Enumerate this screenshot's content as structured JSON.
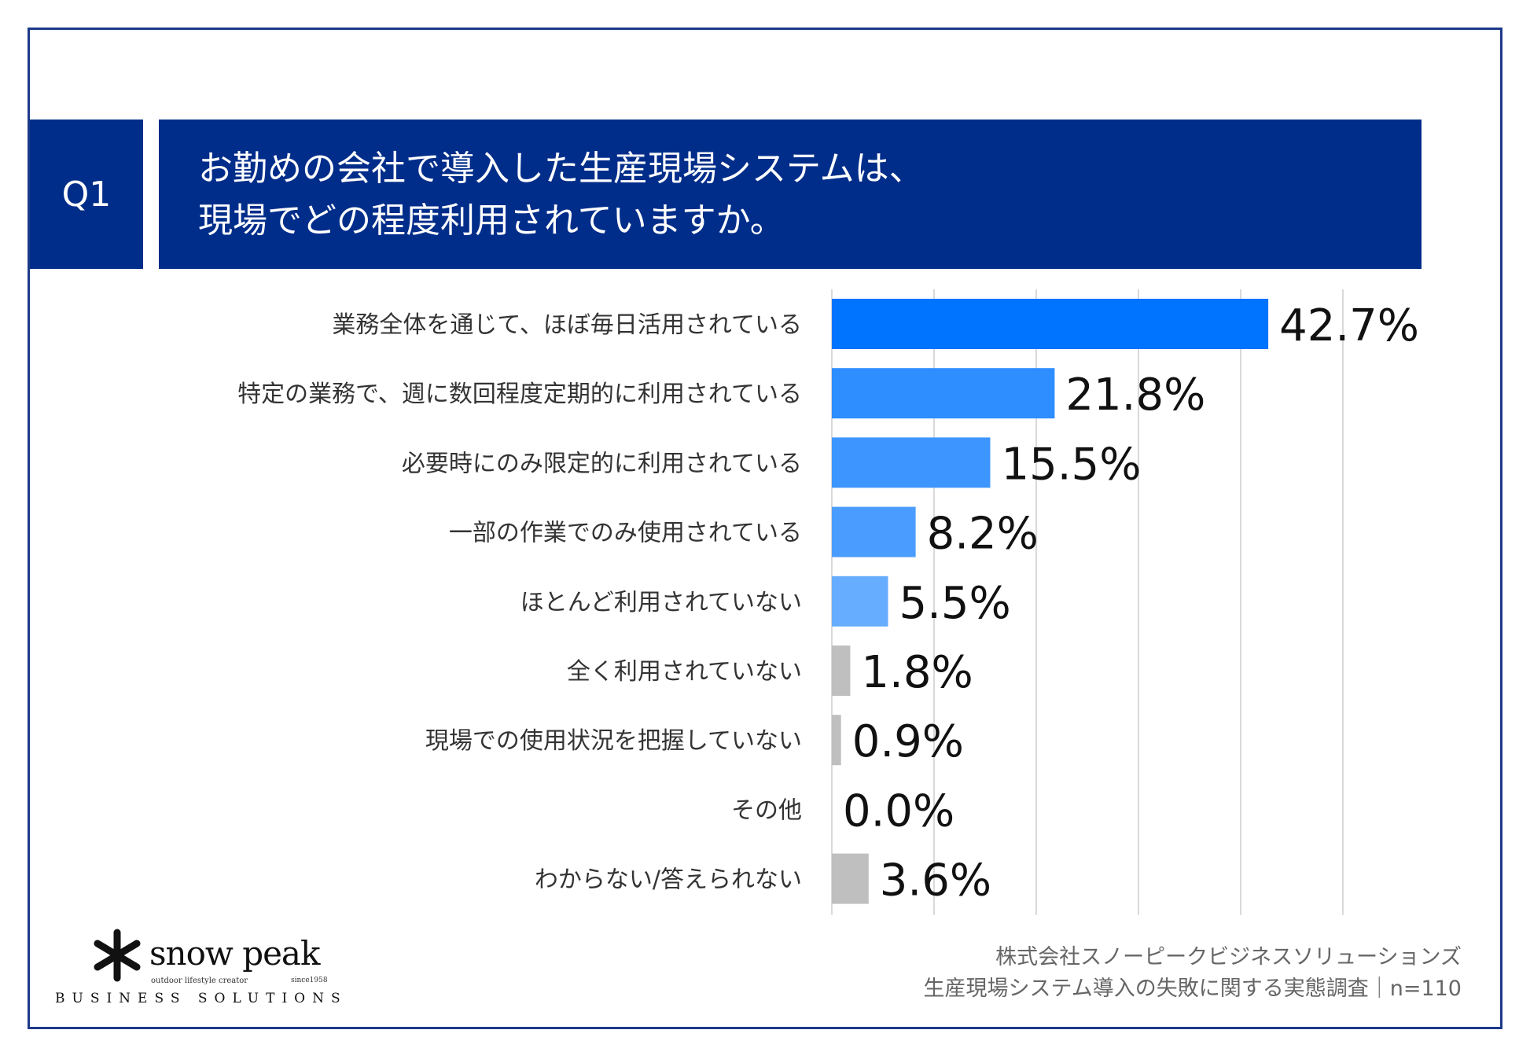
{
  "question": {
    "label": "Q1",
    "line1": "お勤めの会社で導入した生産現場システムは、",
    "line2": "現場でどの程度利用されていますか。"
  },
  "chart_data": {
    "type": "bar",
    "orientation": "horizontal",
    "categories": [
      "業務全体を通じて、ほぼ毎日活用されている",
      "特定の業務で、週に数回程度定期的に利用されている",
      "必要時にのみ限定的に利用されている",
      "一部の作業でのみ使用されている",
      "ほとんど利用されていない",
      "全く利用されていない",
      "現場での使用状況を把握していない",
      "その他",
      "わからない/答えられない"
    ],
    "values": [
      42.7,
      21.8,
      15.5,
      8.2,
      5.5,
      1.8,
      0.9,
      0.0,
      3.6
    ],
    "value_labels": [
      "42.7%",
      "21.8%",
      "15.5%",
      "8.2%",
      "5.5%",
      "1.8%",
      "0.9%",
      "0.0%",
      "3.6%"
    ],
    "colors": [
      "#0073ff",
      "#2e8dff",
      "#3d96ff",
      "#4a9dff",
      "#66adff",
      "#bfbfbf",
      "#bfbfbf",
      "#bfbfbf",
      "#bfbfbf"
    ],
    "xlim": [
      0,
      50
    ],
    "grid": true,
    "gridlines": [
      0,
      10,
      20,
      30,
      40,
      50
    ]
  },
  "footer": {
    "logo_name": "snow peak",
    "logo_tagline": "outdoor lifestyle creator",
    "logo_since": "since1958",
    "logo_division": "BUSINESS SOLUTIONS",
    "company": "株式会社スノーピークビジネスソリューションズ",
    "survey": "生産現場システム導入の失敗に関する実態調査｜n=110"
  }
}
